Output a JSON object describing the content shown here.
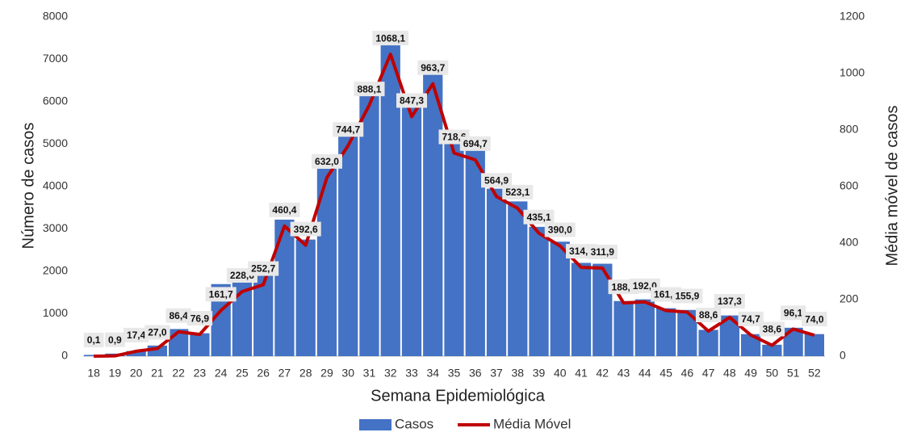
{
  "chart_data": {
    "type": "bar-line",
    "x_label": "Semana Epidemiológica",
    "y_label": "Número de casos",
    "y2_label": "Média móvel de casos",
    "categories": [
      "18",
      "19",
      "20",
      "21",
      "22",
      "23",
      "24",
      "25",
      "26",
      "27",
      "28",
      "29",
      "30",
      "31",
      "32",
      "33",
      "34",
      "35",
      "36",
      "37",
      "38",
      "39",
      "40",
      "41",
      "42",
      "43",
      "44",
      "45",
      "46",
      "47",
      "48",
      "49",
      "50",
      "51",
      "52"
    ],
    "series": [
      {
        "name": "Casos",
        "type": "bar",
        "color": "#4472c4",
        "values": [
          30,
          60,
          120,
          250,
          640,
          540,
          1700,
          1850,
          1900,
          3220,
          2750,
          4420,
          5200,
          6200,
          7400,
          5900,
          6650,
          5000,
          4850,
          3950,
          3650,
          3050,
          2700,
          2200,
          2180,
          1300,
          1340,
          1130,
          1090,
          620,
          960,
          520,
          270,
          670,
          520
        ]
      },
      {
        "name": "Média Móvel",
        "type": "line",
        "axis": "y2",
        "color": "#c00000",
        "values": [
          0.1,
          0.9,
          17.4,
          27.0,
          86.4,
          76.9,
          161.7,
          228.6,
          252.7,
          460.4,
          392.6,
          632.0,
          744.7,
          888.1,
          1068.1,
          847.3,
          963.7,
          718.6,
          694.7,
          564.9,
          523.1,
          435.1,
          390.0,
          314.1,
          311.9,
          188.1,
          192.0,
          161.3,
          155.9,
          88.6,
          137.3,
          74.7,
          38.6,
          96.1,
          74.0
        ],
        "value_labels": [
          "0,1",
          "0,9",
          "17,4",
          "27,0",
          "86,4",
          "76,9",
          "161,7",
          "228,6",
          "252,7",
          "460,4",
          "392,6",
          "632,0",
          "744,7",
          "888,1",
          "1068,1",
          "847,3",
          "963,7",
          "718,6",
          "694,7",
          "564,9",
          "523,1",
          "435,1",
          "390,0",
          "314,1",
          "311,9",
          "188,1",
          "192,0",
          "161,3",
          "155,9",
          "88,6",
          "137,3",
          "74,7",
          "38,6",
          "96,1",
          "74,0"
        ]
      }
    ],
    "ylim": [
      0,
      8000
    ],
    "yticks": [
      0,
      1000,
      2000,
      3000,
      4000,
      5000,
      6000,
      7000,
      8000
    ],
    "y2lim": [
      0,
      1200
    ],
    "y2ticks": [
      0,
      200,
      400,
      600,
      800,
      1000,
      1200
    ],
    "grid": false,
    "legend": "bottom"
  }
}
